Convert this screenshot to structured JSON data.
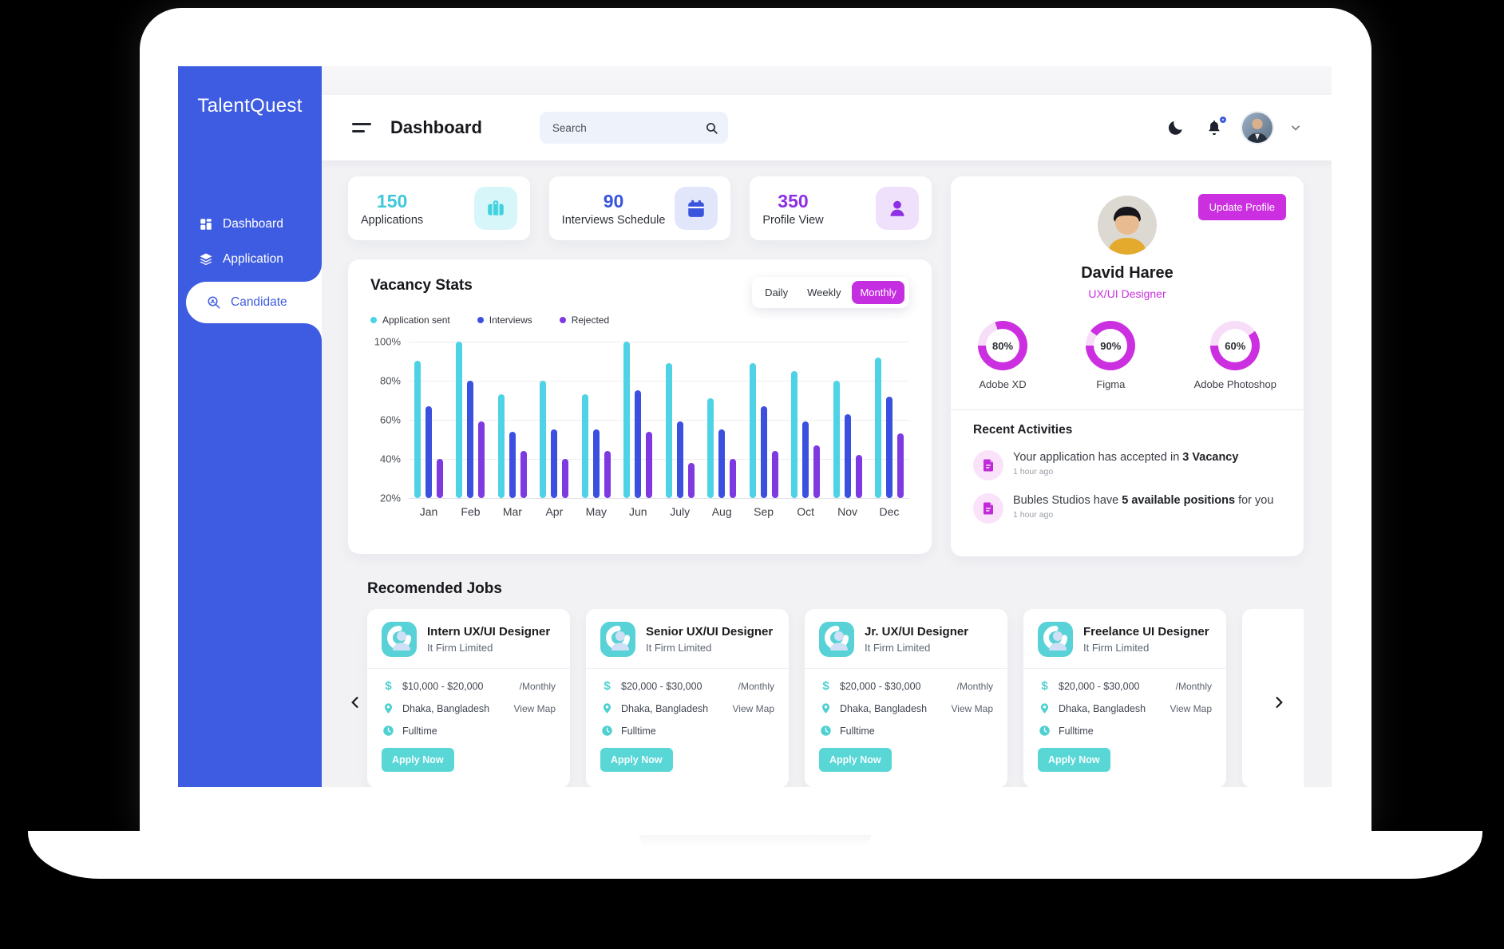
{
  "theme": {
    "sidebar_blue": "#3e5ce1",
    "magenta": "#cb2fe0",
    "teal": "#59d6d6",
    "bar_cyan": "#4ed3e6",
    "bar_blue": "#3c50e0",
    "bar_purple": "#7e3ae0",
    "donut_track": "#f7ddf7"
  },
  "sidebar": {
    "brand": "TalentQuest",
    "items": [
      {
        "label": "Dashboard",
        "icon": "grid-icon",
        "active": false
      },
      {
        "label": "Application",
        "icon": "layers-icon",
        "active": false
      },
      {
        "label": "Candidate",
        "icon": "search-user-icon",
        "active": true
      }
    ]
  },
  "header": {
    "title": "Dashboard",
    "search_placeholder": "Search"
  },
  "stats": [
    {
      "value": "150",
      "label": "Applications",
      "icon": "briefcase-icon",
      "value_color": "#3fc9da",
      "tile_bg": "#d7f6fa",
      "icon_color": "#3ed2de"
    },
    {
      "value": "90",
      "label": "Interviews Schedule",
      "icon": "calendar-icon",
      "value_color": "#3a54dc",
      "tile_bg": "#e1e6fb",
      "icon_color": "#3a54dc"
    },
    {
      "value": "350",
      "label": "Profile View",
      "icon": "person-icon",
      "value_color": "#8e2fe5",
      "tile_bg": "#efe1fc",
      "icon_color": "#8e2fe5"
    }
  ],
  "chart_data": {
    "type": "bar",
    "title": "Vacancy Stats",
    "tabs": [
      "Daily",
      "Weekly",
      "Monthly"
    ],
    "active_tab": "Monthly",
    "categories": [
      "Jan",
      "Feb",
      "Mar",
      "Apr",
      "May",
      "Jun",
      "July",
      "Aug",
      "Sep",
      "Oct",
      "Nov",
      "Dec"
    ],
    "series": [
      {
        "name": "Application sent",
        "color": "#4ed3e6",
        "values": [
          90,
          100,
          73,
          80,
          73,
          100,
          89,
          71,
          89,
          85,
          80,
          92
        ]
      },
      {
        "name": "Interviews",
        "color": "#3c50e0",
        "values": [
          67,
          80,
          54,
          55,
          55,
          75,
          59,
          55,
          67,
          59,
          63,
          72
        ]
      },
      {
        "name": "Rejected",
        "color": "#7e3ae0",
        "values": [
          40,
          59,
          44,
          40,
          44,
          54,
          38,
          40,
          44,
          47,
          42,
          53
        ]
      }
    ],
    "y_ticks": [
      "100%",
      "80%",
      "60%",
      "40%",
      "20%"
    ],
    "ylim": [
      20,
      100
    ],
    "grid": true,
    "legend_position": "top-left"
  },
  "profile": {
    "name": "David Haree",
    "role": "UX/UI Designer",
    "update_button": "Update Profile",
    "skills": [
      {
        "label": "Adobe XD",
        "percent": 80,
        "display": "80%"
      },
      {
        "label": "Figma",
        "percent": 90,
        "display": "90%"
      },
      {
        "label": "Adobe Photoshop",
        "percent": 60,
        "display": "60%"
      }
    ],
    "activities_title": "Recent Activities",
    "activities": [
      {
        "pre": "Your application has accepted in ",
        "bold": "3 Vacancy",
        "post": "",
        "time": "1 hour ago"
      },
      {
        "pre": "Bubles Studios have ",
        "bold": "5 available positions",
        "post": " for you",
        "time": "1 hour ago"
      }
    ]
  },
  "jobs": {
    "section_title": "Recomended Jobs",
    "cards": [
      {
        "title": "Intern UX/UI Designer",
        "company": "It Firm Limited",
        "salary": "$10,000 - $20,000",
        "salary_period": "/Monthly",
        "location": "Dhaka, Bangladesh",
        "location_action": "View Map",
        "employment_type": "Fulltime",
        "apply_label": "Apply Now"
      },
      {
        "title": "Senior UX/UI Designer",
        "company": "It Firm Limited",
        "salary": "$20,000 - $30,000",
        "salary_period": "/Monthly",
        "location": "Dhaka, Bangladesh",
        "location_action": "View Map",
        "employment_type": "Fulltime",
        "apply_label": "Apply Now"
      },
      {
        "title": "Jr. UX/UI Designer",
        "company": "It Firm Limited",
        "salary": "$20,000 - $30,000",
        "salary_period": "/Monthly",
        "location": "Dhaka, Bangladesh",
        "location_action": "View Map",
        "employment_type": "Fulltime",
        "apply_label": "Apply Now"
      },
      {
        "title": "Freelance UI Designer",
        "company": "It Firm Limited",
        "salary": "$20,000 - $30,000",
        "salary_period": "/Monthly",
        "location": "Dhaka, Bangladesh",
        "location_action": "View Map",
        "employment_type": "Fulltime",
        "apply_label": "Apply Now"
      }
    ]
  }
}
